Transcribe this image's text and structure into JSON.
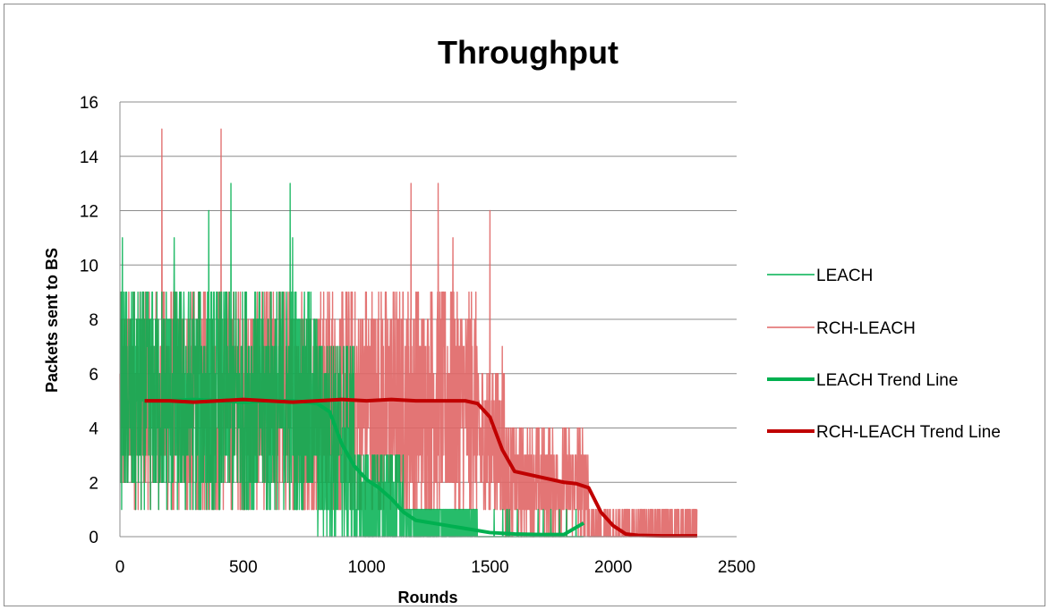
{
  "chart_data": {
    "type": "line",
    "title": "Throughput",
    "xlabel": "Rounds",
    "ylabel": "Packets sent to BS",
    "xlim": [
      0,
      2500
    ],
    "ylim": [
      0,
      16
    ],
    "xticks": [
      "0",
      "500",
      "1000",
      "1500",
      "2000",
      "2500"
    ],
    "yticks": [
      "0",
      "2",
      "4",
      "6",
      "8",
      "10",
      "12",
      "14",
      "16"
    ],
    "grid": "horizontal",
    "legend_position": "right",
    "series": [
      {
        "name": "LEACH",
        "kind": "raw",
        "color": "#00b050",
        "segments": [
          {
            "x_range": [
              0,
              800
            ],
            "low": 1,
            "high": 13,
            "center": 5,
            "spread": 2.6
          },
          {
            "x_range": [
              800,
              950
            ],
            "low": 0,
            "high": 9,
            "center": 3.5,
            "spread": 2.5
          },
          {
            "x_range": [
              950,
              1150
            ],
            "low": 0,
            "high": 6,
            "center": 1.2,
            "spread": 1.4
          },
          {
            "x_range": [
              1150,
              1450
            ],
            "low": 0,
            "high": 2,
            "center": 0.5,
            "spread": 0.6
          },
          {
            "x_range": [
              1450,
              1880
            ],
            "low": 0,
            "high": 1,
            "center": 0.05,
            "spread": 0.3
          }
        ],
        "peaks": [
          [
            10,
            11
          ],
          [
            220,
            11
          ],
          [
            360,
            12
          ],
          [
            450,
            13
          ],
          [
            690,
            13
          ],
          [
            700,
            11
          ]
        ]
      },
      {
        "name": "RCH-LEACH",
        "kind": "raw",
        "color": "#e06666",
        "segments": [
          {
            "x_range": [
              0,
              1450
            ],
            "low": 1,
            "high": 12,
            "center": 5,
            "spread": 2.6
          },
          {
            "x_range": [
              1450,
              1560
            ],
            "low": 1,
            "high": 7,
            "center": 3.5,
            "spread": 1.8
          },
          {
            "x_range": [
              1560,
              1900
            ],
            "low": 0,
            "high": 5,
            "center": 2,
            "spread": 1.2
          },
          {
            "x_range": [
              1900,
              2340
            ],
            "low": 0,
            "high": 1,
            "center": 0.1,
            "spread": 0.5
          }
        ],
        "peaks": [
          [
            170,
            15
          ],
          [
            410,
            15
          ],
          [
            1180,
            13
          ],
          [
            1290,
            13
          ],
          [
            1350,
            11
          ],
          [
            1500,
            12
          ],
          [
            1550,
            7
          ]
        ]
      },
      {
        "name": "LEACH Trend Line",
        "kind": "trend",
        "color": "#00b050",
        "x": [
          100,
          200,
          300,
          400,
          500,
          600,
          700,
          800,
          850,
          900,
          950,
          1000,
          1050,
          1100,
          1150,
          1200,
          1300,
          1400,
          1500,
          1600,
          1700,
          1800,
          1880
        ],
        "values": [
          5.0,
          5.0,
          5.05,
          5.0,
          4.95,
          5.0,
          5.0,
          4.9,
          4.6,
          3.4,
          2.6,
          2.1,
          1.8,
          1.4,
          0.9,
          0.6,
          0.45,
          0.3,
          0.15,
          0.1,
          0.08,
          0.08,
          0.5
        ]
      },
      {
        "name": "RCH-LEACH Trend Line",
        "kind": "trend",
        "color": "#c00000",
        "x": [
          100,
          200,
          300,
          400,
          500,
          600,
          700,
          800,
          900,
          1000,
          1100,
          1200,
          1300,
          1400,
          1450,
          1500,
          1550,
          1600,
          1700,
          1800,
          1850,
          1900,
          1950,
          2000,
          2050,
          2100,
          2200,
          2340
        ],
        "values": [
          5.0,
          5.0,
          4.95,
          5.0,
          5.05,
          5.0,
          4.95,
          5.0,
          5.05,
          5.0,
          5.05,
          5.0,
          5.0,
          5.0,
          4.9,
          4.4,
          3.2,
          2.4,
          2.2,
          2.0,
          1.95,
          1.8,
          0.9,
          0.4,
          0.1,
          0.05,
          0.03,
          0.03
        ]
      }
    ]
  }
}
